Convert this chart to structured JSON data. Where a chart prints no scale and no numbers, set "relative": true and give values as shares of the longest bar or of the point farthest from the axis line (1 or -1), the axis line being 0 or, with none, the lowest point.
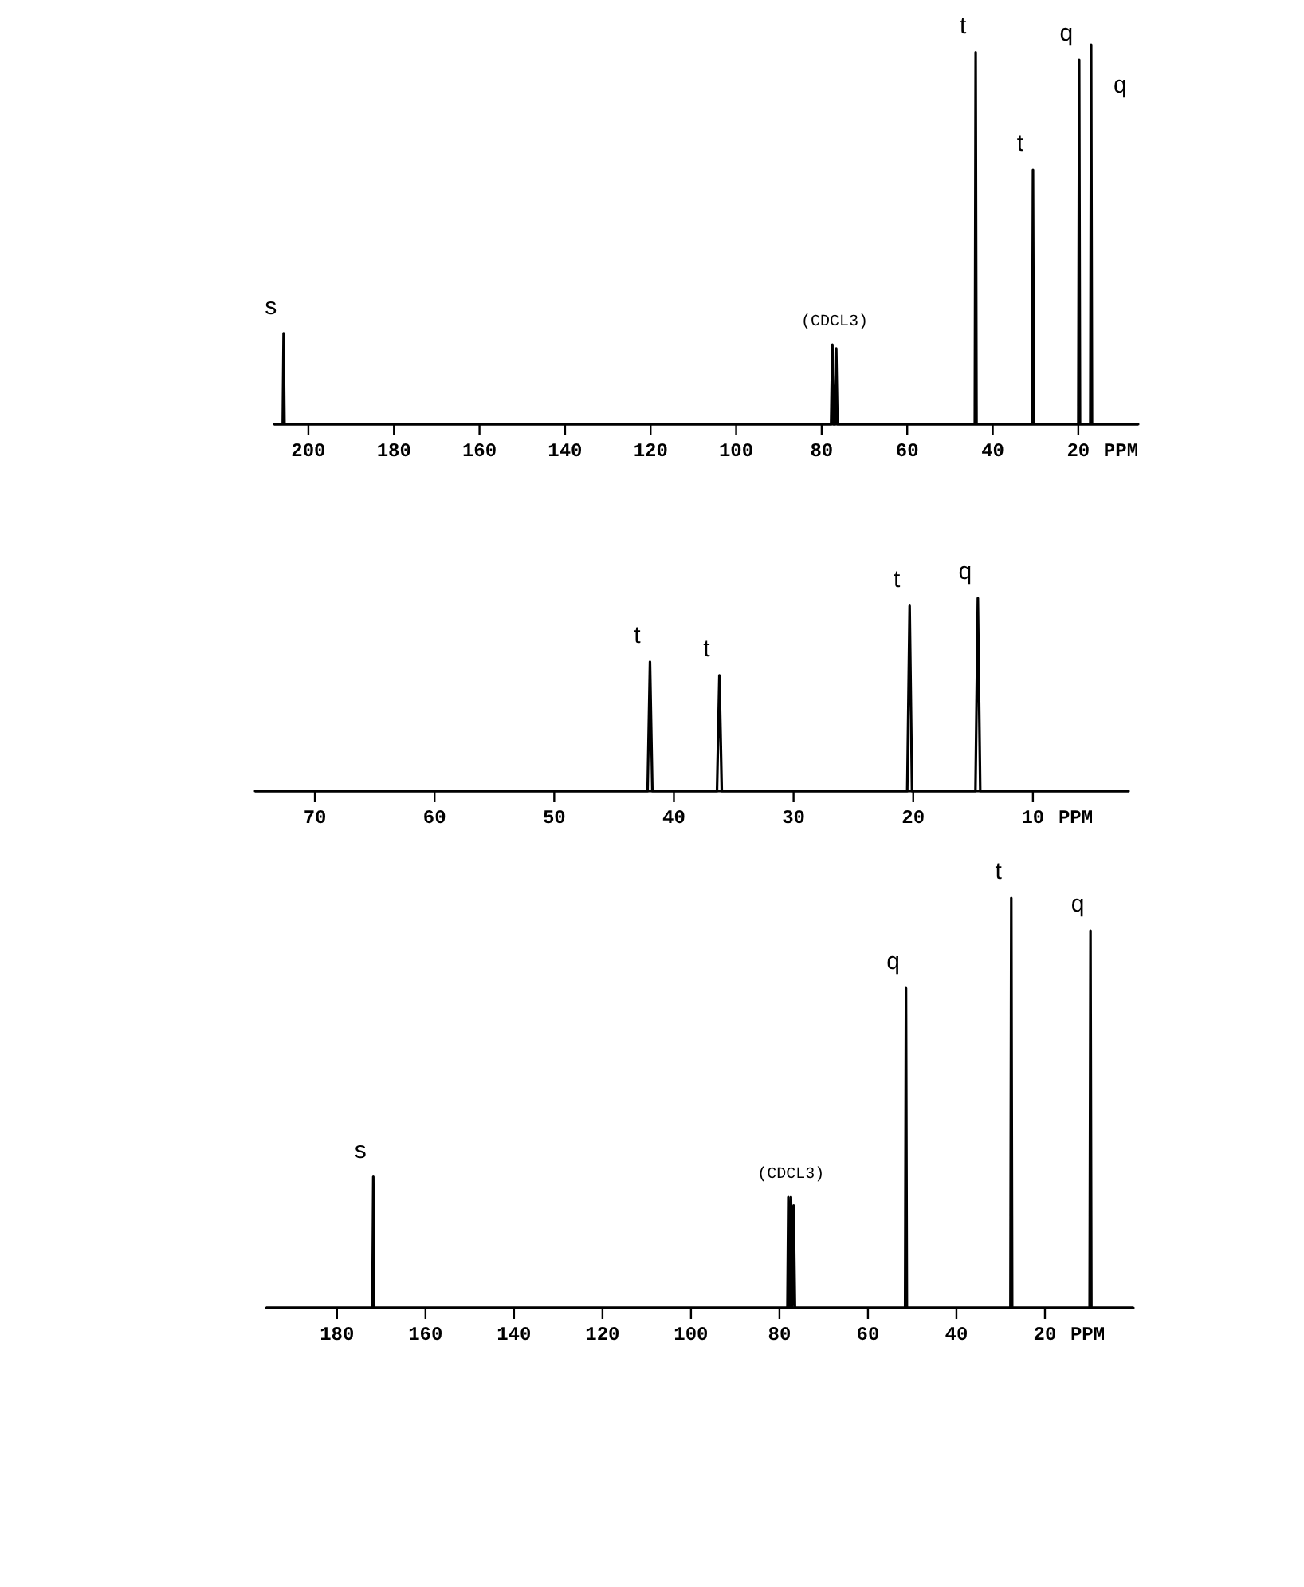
{
  "chart_data": [
    {
      "type": "line",
      "relative": true,
      "xlabel": "PPM",
      "tick_labels": "x",
      "xlim": [
        208,
        6
      ],
      "xticks": [
        200,
        180,
        160,
        140,
        120,
        100,
        80,
        60,
        40,
        20
      ],
      "series": [
        {
          "color": "#000000",
          "x": [
            208,
            206,
            205.8,
            205.6,
            77.8,
            77.5,
            77.2,
            76.9,
            76.6,
            76.3,
            44.2,
            44,
            43.8,
            30.8,
            30.6,
            30.4,
            20,
            19.8,
            19.6,
            17.2,
            17,
            16.8,
            6
          ],
          "values": [
            0,
            0,
            0.24,
            0,
            0,
            0.21,
            0,
            0,
            0.2,
            0,
            0,
            0.98,
            0,
            0,
            0.67,
            0,
            0,
            0.96,
            0,
            0,
            1,
            0,
            0
          ]
        }
      ],
      "annotations": [
        {
          "text": "s",
          "x": 205.8,
          "y": 0.24
        },
        {
          "text": "(CDCL3)",
          "x": 77,
          "y": 0.21
        },
        {
          "text": "t",
          "x": 44,
          "y": 0.98
        },
        {
          "text": "t",
          "x": 30.6,
          "y": 0.67
        },
        {
          "text": "q",
          "x": 19.8,
          "y": 0.96
        },
        {
          "text": "q",
          "x": 17,
          "y": 1
        }
      ]
    },
    {
      "type": "line",
      "relative": true,
      "xlabel": "PPM",
      "tick_labels": "x",
      "xlim": [
        75,
        2
      ],
      "xticks": [
        70,
        60,
        50,
        40,
        30,
        20,
        10
      ],
      "series": [
        {
          "color": "#000000",
          "x": [
            75,
            42.2,
            42,
            41.8,
            36.4,
            36.2,
            36,
            20.5,
            20.3,
            20.1,
            14.8,
            14.6,
            14.4,
            2
          ],
          "values": [
            0,
            0,
            0.67,
            0,
            0,
            0.6,
            0,
            0,
            0.96,
            0,
            0,
            1,
            0,
            0
          ]
        }
      ],
      "annotations": [
        {
          "text": "t",
          "x": 42,
          "y": 0.67
        },
        {
          "text": "t",
          "x": 36.2,
          "y": 0.6
        },
        {
          "text": "t",
          "x": 20.3,
          "y": 0.96
        },
        {
          "text": "q",
          "x": 14.6,
          "y": 1
        }
      ]
    },
    {
      "type": "line",
      "relative": true,
      "xlabel": "PPM",
      "tick_labels": "x",
      "xlim": [
        196,
        0
      ],
      "xticks": [
        180,
        160,
        140,
        120,
        100,
        80,
        60,
        40,
        20
      ],
      "series": [
        {
          "color": "#000000",
          "x": [
            196,
            172,
            171.8,
            171.6,
            78.2,
            78,
            77.7,
            77.4,
            77.1,
            76.8,
            76.5,
            51.6,
            51.4,
            51.2,
            27.8,
            27.6,
            27.4,
            9.9,
            9.7,
            9.5,
            0
          ],
          "values": [
            0,
            0,
            0.32,
            0,
            0,
            0.27,
            0,
            0.27,
            0,
            0.25,
            0,
            0,
            0.78,
            0,
            0,
            1,
            0,
            0,
            0.92,
            0,
            0
          ]
        }
      ],
      "annotations": [
        {
          "text": "s",
          "x": 171.8,
          "y": 0.32
        },
        {
          "text": "(CDCL3)",
          "x": 77.4,
          "y": 0.27
        },
        {
          "text": "q",
          "x": 51.4,
          "y": 0.78
        },
        {
          "text": "t",
          "x": 27.6,
          "y": 1
        },
        {
          "text": "q",
          "x": 9.7,
          "y": 0.92
        }
      ]
    }
  ]
}
